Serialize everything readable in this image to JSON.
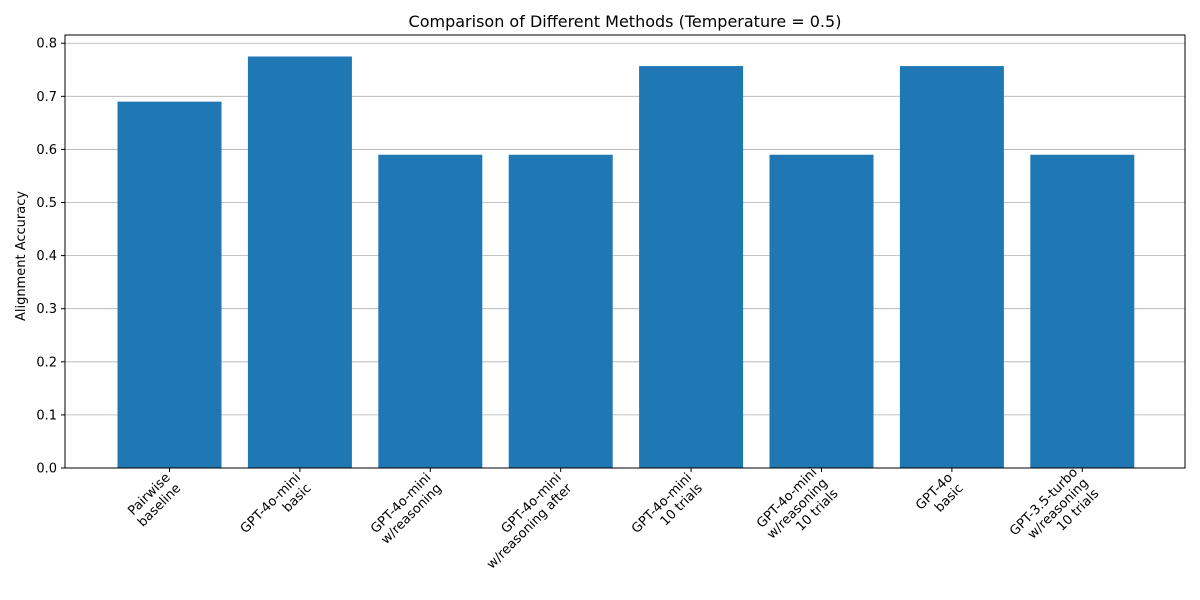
{
  "colors": {
    "bar": "#1f77b4",
    "grid": "#b0b0b0",
    "axis": "#000000"
  },
  "chart_data": {
    "type": "bar",
    "title": "Comparison of Different Methods (Temperature = 0.5)",
    "xlabel": "",
    "ylabel": "Alignment Accuracy",
    "ylim": [
      0,
      0.8155
    ],
    "yticks": [
      "0.0",
      "0.1",
      "0.2",
      "0.3",
      "0.4",
      "0.5",
      "0.6",
      "0.7",
      "0.8"
    ],
    "grid": "y",
    "categories": [
      "Pairwise\nbaseline",
      "GPT-4o-mini\nbasic",
      "GPT-4o-mini\nw/reasoning",
      "GPT-4o-mini\nw/reasoning after",
      "GPT-4o-mini\n10 trials",
      "GPT-4o-mini\nw/reasoning\n10 trials",
      "GPT-4o\nbasic",
      "GPT-3.5-turbo\nw/reasoning\n10 trials"
    ],
    "values": [
      0.69,
      0.775,
      0.59,
      0.59,
      0.757,
      0.59,
      0.757,
      0.59
    ]
  }
}
